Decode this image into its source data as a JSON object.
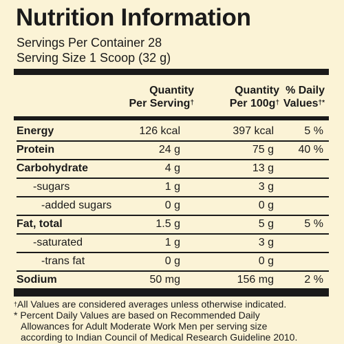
{
  "panel": {
    "title": "Nutrition Information",
    "servings_per_container": "Servings Per Container 28",
    "serving_size": "Serving Size 1 Scoop (32 g)"
  },
  "columns": {
    "per_serving": [
      "Quantity",
      "Per Serving"
    ],
    "per_100g": [
      "Quantity",
      "Per 100g"
    ],
    "daily_values": [
      "% Daily",
      "Values"
    ],
    "dagger": "†"
  },
  "rows": [
    {
      "label": "Energy",
      "bold": true,
      "per_serving": "126 kcal",
      "per_100g": "397 kcal",
      "dv": "5 %"
    },
    {
      "label": "Protein",
      "bold": true,
      "per_serving": "24 g",
      "per_100g": "75 g",
      "dv": "40 %"
    },
    {
      "label": "Carbohydrate",
      "bold": true,
      "per_serving": "4 g",
      "per_100g": "13 g",
      "dv": ""
    },
    {
      "label": "-sugars",
      "bold": false,
      "per_serving": "1 g",
      "per_100g": "3 g",
      "dv": ""
    },
    {
      "label": "-added sugars",
      "bold": false,
      "per_serving": "0 g",
      "per_100g": "0 g",
      "dv": ""
    },
    {
      "label": "Fat, total",
      "bold": true,
      "per_serving": "1.5 g",
      "per_100g": "5 g",
      "dv": "5 %"
    },
    {
      "label": "-saturated",
      "bold": false,
      "per_serving": "1 g",
      "per_100g": "3 g",
      "dv": ""
    },
    {
      "label": "-trans fat",
      "bold": false,
      "per_serving": "0 g",
      "per_100g": "0 g",
      "dv": ""
    },
    {
      "label": "Sodium",
      "bold": true,
      "per_serving": "50 mg",
      "per_100g": "156 mg",
      "dv": "2 %"
    }
  ],
  "footnotes": {
    "dagger_mark": "†",
    "line1": "All Values are considered averages unless otherwise indicated.",
    "line2": "* Percent Daily Values are based on Recommended Daily",
    "line3": "Allowances for Adult Moderate Work Men per serving size",
    "line4": "according to Indian Council of Medical Research Guideline 2010."
  },
  "colors": {
    "background": "#fbf3d6",
    "ink": "#1a1a1a"
  }
}
